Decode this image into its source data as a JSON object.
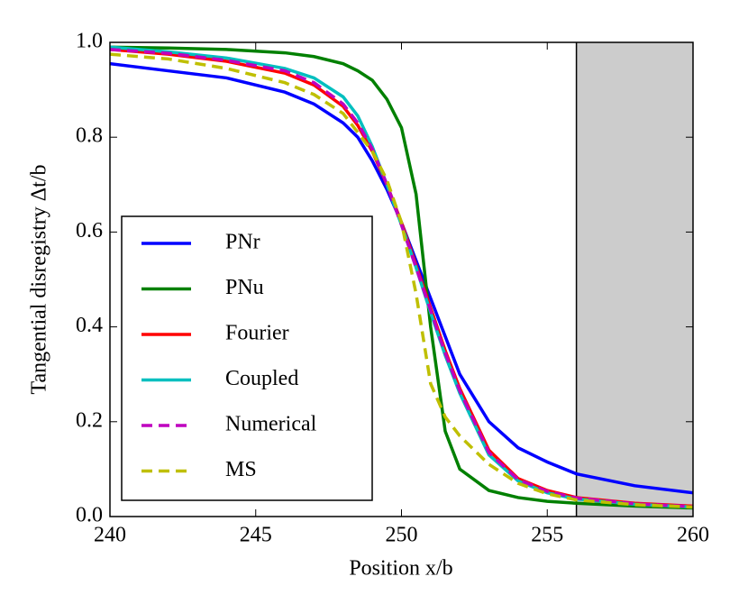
{
  "chart_data": {
    "type": "line",
    "xlabel": "Position x/b",
    "ylabel": "Tangential disregistry Δt/b",
    "x": [
      240,
      242,
      244,
      246,
      247,
      248,
      248.5,
      249,
      249.5,
      250,
      250.5,
      251,
      251.5,
      252,
      253,
      254,
      255,
      256,
      258,
      260
    ],
    "series": [
      {
        "name": "PNr",
        "color": "#0000ff",
        "style": "solid",
        "values": [
          0.955,
          0.94,
          0.925,
          0.895,
          0.87,
          0.83,
          0.8,
          0.75,
          0.69,
          0.62,
          0.54,
          0.46,
          0.38,
          0.3,
          0.2,
          0.145,
          0.115,
          0.09,
          0.065,
          0.05
        ]
      },
      {
        "name": "PNu",
        "color": "#008000",
        "style": "solid",
        "values": [
          0.99,
          0.988,
          0.985,
          0.978,
          0.97,
          0.955,
          0.94,
          0.92,
          0.88,
          0.82,
          0.68,
          0.4,
          0.18,
          0.1,
          0.055,
          0.04,
          0.032,
          0.028,
          0.022,
          0.018
        ]
      },
      {
        "name": "Fourier",
        "color": "#ff0000",
        "style": "solid",
        "values": [
          0.985,
          0.975,
          0.96,
          0.935,
          0.91,
          0.865,
          0.825,
          0.77,
          0.7,
          0.62,
          0.53,
          0.44,
          0.35,
          0.27,
          0.14,
          0.08,
          0.055,
          0.04,
          0.028,
          0.022
        ]
      },
      {
        "name": "Coupled",
        "color": "#00bfbf",
        "style": "solid",
        "values": [
          0.99,
          0.98,
          0.967,
          0.945,
          0.925,
          0.885,
          0.845,
          0.78,
          0.7,
          0.615,
          0.525,
          0.43,
          0.34,
          0.26,
          0.13,
          0.075,
          0.05,
          0.037,
          0.026,
          0.02
        ]
      },
      {
        "name": "Numerical",
        "color": "#bf00bf",
        "style": "dashed",
        "values": [
          0.985,
          0.977,
          0.962,
          0.94,
          0.915,
          0.87,
          0.83,
          0.775,
          0.7,
          0.615,
          0.525,
          0.435,
          0.345,
          0.265,
          0.135,
          0.078,
          0.053,
          0.039,
          0.027,
          0.021
        ]
      },
      {
        "name": "MS",
        "color": "#bfbf00",
        "style": "dashed",
        "values": [
          0.975,
          0.965,
          0.945,
          0.915,
          0.89,
          0.85,
          0.81,
          0.77,
          0.71,
          0.62,
          0.47,
          0.28,
          0.21,
          0.17,
          0.11,
          0.07,
          0.048,
          0.035,
          0.025,
          0.02
        ]
      }
    ],
    "xlim": [
      240,
      260
    ],
    "ylim": [
      0,
      1
    ],
    "xticks": [
      240,
      245,
      250,
      255,
      260
    ],
    "yticks": [
      {
        "value": 0,
        "label": "0.0"
      },
      0.2,
      0.4,
      0.6,
      0.8,
      {
        "value": 1,
        "label": "1.0"
      }
    ],
    "shaded_region": {
      "xlim": [
        256,
        260
      ],
      "color": "#cccccc"
    },
    "legend": "lower left"
  }
}
